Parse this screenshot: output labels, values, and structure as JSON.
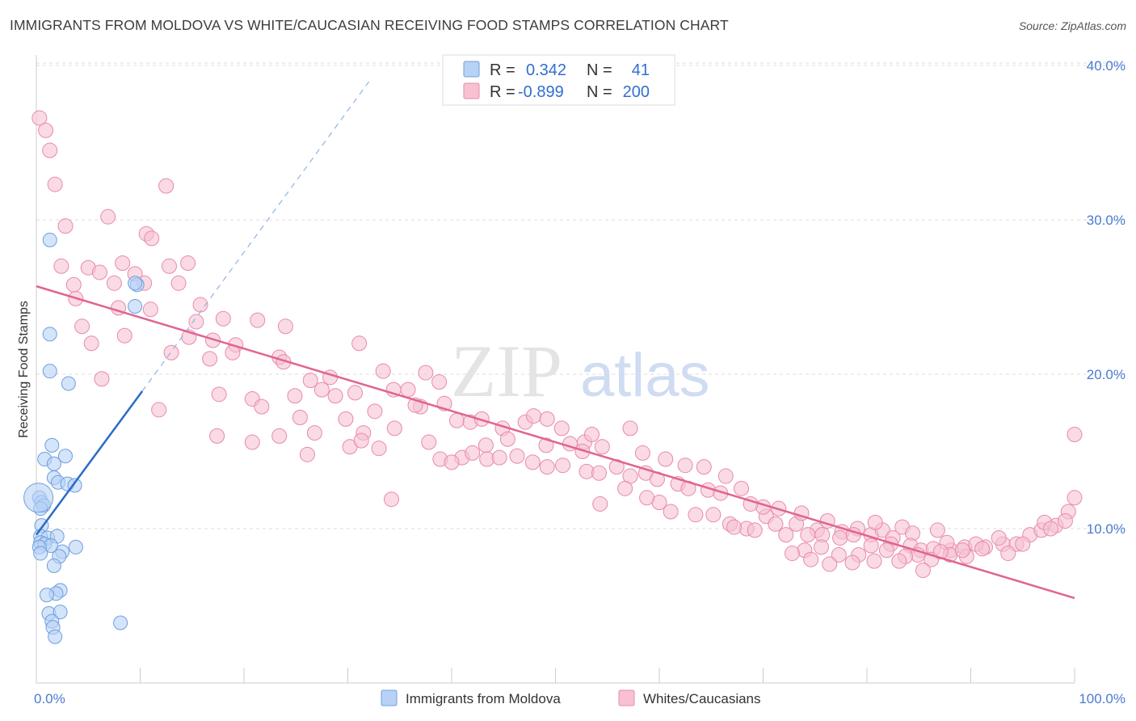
{
  "title": "IMMIGRANTS FROM MOLDOVA VS WHITE/CAUCASIAN RECEIVING FOOD STAMPS CORRELATION CHART",
  "source": "Source: ZipAtlas.com",
  "watermark": {
    "zip": "ZIP",
    "atlas": "atlas"
  },
  "colors": {
    "blue_fill": "#b7d2f5",
    "blue_stroke": "#6d9fe0",
    "blue_line": "#2a6cc9",
    "pink_fill": "#f7c1d2",
    "pink_stroke": "#e88aab",
    "pink_line": "#e06493",
    "axis_label": "#4a7bd0",
    "grid": "#dddddd"
  },
  "legend_top": {
    "rows": [
      {
        "r_label": "R =",
        "r_value": "0.342",
        "n_label": "N =",
        "n_value": "41"
      },
      {
        "r_label": "R =",
        "r_value": "-0.899",
        "n_label": "N =",
        "n_value": "200"
      }
    ]
  },
  "legend_bottom": {
    "series1": "Immigrants from Moldova",
    "series2": "Whites/Caucasians"
  },
  "chart_data": {
    "type": "scatter",
    "title": "IMMIGRANTS FROM MOLDOVA VS WHITE/CAUCASIAN RECEIVING FOOD STAMPS CORRELATION CHART",
    "xlabel": "",
    "ylabel": "Receiving Food Stamps",
    "xlim": [
      0,
      100
    ],
    "ylim": [
      0,
      42
    ],
    "x_tick_labels": [
      "0.0%",
      "100.0%"
    ],
    "y_ticks": [
      10,
      20,
      30,
      40
    ],
    "y_tick_labels": [
      "10.0%",
      "20.0%",
      "30.0%",
      "40.0%"
    ],
    "grid": true,
    "legend": "bottom-center",
    "series": [
      {
        "name": "Immigrants from Moldova",
        "R": 0.342,
        "N": 41,
        "trend": {
          "x": [
            0,
            10.2
          ],
          "y": [
            9.6,
            18.9
          ]
        },
        "trend_extended": {
          "x": [
            10.2,
            32.3
          ],
          "y": [
            18.9,
            39.2
          ]
        },
        "points": [
          [
            1.3,
            28.7
          ],
          [
            1.3,
            22.6
          ],
          [
            1.3,
            20.2
          ],
          [
            3.1,
            19.4
          ],
          [
            1.5,
            15.4
          ],
          [
            2.8,
            14.7
          ],
          [
            0.8,
            14.5
          ],
          [
            1.7,
            14.2
          ],
          [
            1.7,
            13.3
          ],
          [
            2.1,
            13.0
          ],
          [
            3.0,
            12.9
          ],
          [
            3.7,
            12.8
          ],
          [
            0.3,
            12.0
          ],
          [
            0.5,
            11.7
          ],
          [
            0.7,
            11.5
          ],
          [
            0.4,
            11.3
          ],
          [
            0.5,
            10.2
          ],
          [
            0.4,
            9.5
          ],
          [
            1.1,
            9.4
          ],
          [
            2.0,
            9.5
          ],
          [
            0.4,
            9.1
          ],
          [
            0.8,
            9.0
          ],
          [
            1.4,
            8.9
          ],
          [
            0.3,
            8.8
          ],
          [
            3.8,
            8.8
          ],
          [
            2.5,
            8.5
          ],
          [
            0.4,
            8.4
          ],
          [
            2.2,
            8.2
          ],
          [
            1.7,
            7.6
          ],
          [
            2.3,
            6.0
          ],
          [
            1.9,
            5.8
          ],
          [
            1.0,
            5.7
          ],
          [
            1.2,
            4.5
          ],
          [
            2.3,
            4.6
          ],
          [
            1.5,
            4.0
          ],
          [
            1.6,
            3.6
          ],
          [
            1.8,
            3.0
          ],
          [
            8.1,
            3.9
          ],
          [
            9.7,
            25.8
          ],
          [
            9.5,
            25.9
          ],
          [
            9.5,
            24.4
          ]
        ]
      },
      {
        "name": "Whites/Caucasians",
        "R": -0.899,
        "N": 200,
        "trend": {
          "x": [
            0,
            100
          ],
          "y": [
            25.7,
            5.5
          ]
        },
        "points": [
          [
            0.3,
            36.6
          ],
          [
            0.9,
            35.8
          ],
          [
            1.3,
            34.5
          ],
          [
            1.8,
            32.3
          ],
          [
            12.5,
            32.2
          ],
          [
            6.9,
            30.2
          ],
          [
            2.8,
            29.6
          ],
          [
            10.6,
            29.1
          ],
          [
            11.1,
            28.8
          ],
          [
            2.4,
            27.0
          ],
          [
            5.0,
            26.9
          ],
          [
            8.3,
            27.2
          ],
          [
            12.8,
            27.0
          ],
          [
            14.6,
            27.2
          ],
          [
            6.1,
            26.6
          ],
          [
            9.5,
            26.5
          ],
          [
            3.6,
            25.8
          ],
          [
            7.5,
            25.9
          ],
          [
            10.4,
            25.9
          ],
          [
            13.7,
            25.9
          ],
          [
            3.8,
            24.9
          ],
          [
            7.9,
            24.3
          ],
          [
            11.0,
            24.2
          ],
          [
            15.8,
            24.5
          ],
          [
            4.4,
            23.1
          ],
          [
            15.4,
            23.4
          ],
          [
            18.0,
            23.6
          ],
          [
            21.3,
            23.5
          ],
          [
            24.0,
            23.1
          ],
          [
            8.5,
            22.5
          ],
          [
            5.3,
            22.0
          ],
          [
            14.7,
            22.4
          ],
          [
            17.0,
            22.2
          ],
          [
            19.2,
            21.9
          ],
          [
            31.1,
            22.0
          ],
          [
            13.0,
            21.4
          ],
          [
            16.7,
            21.0
          ],
          [
            18.9,
            21.4
          ],
          [
            23.4,
            21.1
          ],
          [
            6.3,
            19.7
          ],
          [
            23.8,
            20.8
          ],
          [
            26.4,
            19.6
          ],
          [
            28.3,
            19.8
          ],
          [
            33.4,
            20.2
          ],
          [
            34.4,
            19.0
          ],
          [
            37.5,
            20.1
          ],
          [
            38.8,
            19.5
          ],
          [
            17.6,
            18.7
          ],
          [
            20.8,
            18.4
          ],
          [
            24.9,
            18.6
          ],
          [
            27.5,
            19.0
          ],
          [
            28.8,
            18.6
          ],
          [
            30.7,
            18.8
          ],
          [
            35.8,
            19.0
          ],
          [
            37.0,
            17.9
          ],
          [
            39.3,
            18.1
          ],
          [
            11.8,
            17.7
          ],
          [
            21.7,
            17.9
          ],
          [
            25.4,
            17.2
          ],
          [
            29.8,
            17.1
          ],
          [
            32.6,
            17.6
          ],
          [
            36.5,
            18.0
          ],
          [
            40.5,
            17.0
          ],
          [
            41.8,
            16.9
          ],
          [
            42.9,
            17.1
          ],
          [
            44.9,
            16.5
          ],
          [
            47.1,
            16.9
          ],
          [
            47.9,
            17.3
          ],
          [
            49.2,
            17.1
          ],
          [
            50.6,
            16.5
          ],
          [
            52.8,
            15.6
          ],
          [
            53.5,
            16.1
          ],
          [
            57.2,
            16.5
          ],
          [
            17.4,
            16.0
          ],
          [
            20.8,
            15.6
          ],
          [
            23.4,
            16.0
          ],
          [
            26.8,
            16.2
          ],
          [
            31.5,
            16.2
          ],
          [
            34.5,
            16.5
          ],
          [
            37.8,
            15.6
          ],
          [
            43.3,
            15.4
          ],
          [
            45.4,
            15.8
          ],
          [
            49.1,
            15.4
          ],
          [
            51.4,
            15.5
          ],
          [
            52.6,
            15.0
          ],
          [
            54.5,
            15.3
          ],
          [
            58.4,
            14.9
          ],
          [
            60.6,
            14.5
          ],
          [
            62.5,
            14.1
          ],
          [
            64.3,
            14.0
          ],
          [
            41.0,
            14.6
          ],
          [
            42.0,
            14.9
          ],
          [
            43.4,
            14.5
          ],
          [
            44.6,
            14.6
          ],
          [
            46.3,
            14.7
          ],
          [
            47.8,
            14.3
          ],
          [
            49.2,
            14.0
          ],
          [
            50.7,
            14.1
          ],
          [
            53.0,
            13.7
          ],
          [
            54.2,
            13.6
          ],
          [
            55.9,
            14.0
          ],
          [
            57.2,
            13.4
          ],
          [
            58.7,
            13.6
          ],
          [
            59.8,
            13.2
          ],
          [
            61.8,
            12.9
          ],
          [
            62.8,
            12.6
          ],
          [
            64.7,
            12.5
          ],
          [
            65.9,
            12.3
          ],
          [
            67.9,
            12.6
          ],
          [
            33.0,
            15.2
          ],
          [
            30.2,
            15.3
          ],
          [
            26.1,
            14.8
          ],
          [
            31.3,
            15.7
          ],
          [
            38.9,
            14.5
          ],
          [
            40.0,
            14.3
          ],
          [
            34.2,
            11.9
          ],
          [
            54.3,
            11.6
          ],
          [
            60.0,
            11.7
          ],
          [
            61.1,
            11.1
          ],
          [
            63.5,
            10.9
          ],
          [
            65.2,
            10.9
          ],
          [
            66.8,
            10.3
          ],
          [
            68.4,
            10.0
          ],
          [
            70.3,
            10.8
          ],
          [
            71.2,
            10.3
          ],
          [
            71.5,
            11.3
          ],
          [
            73.2,
            10.3
          ],
          [
            73.7,
            11.0
          ],
          [
            75.2,
            9.9
          ],
          [
            76.2,
            10.5
          ],
          [
            77.6,
            9.8
          ],
          [
            79.1,
            10.0
          ],
          [
            80.4,
            9.6
          ],
          [
            81.5,
            9.9
          ],
          [
            82.5,
            9.4
          ],
          [
            83.4,
            10.1
          ],
          [
            84.4,
            9.7
          ],
          [
            86.8,
            9.9
          ],
          [
            69.2,
            9.9
          ],
          [
            67.2,
            10.1
          ],
          [
            72.2,
            9.6
          ],
          [
            74.3,
            9.6
          ],
          [
            75.7,
            9.6
          ],
          [
            77.4,
            9.4
          ],
          [
            78.7,
            9.6
          ],
          [
            80.8,
            10.4
          ],
          [
            82.3,
            9.0
          ],
          [
            84.2,
            8.9
          ],
          [
            85.2,
            8.6
          ],
          [
            86.4,
            8.7
          ],
          [
            88.1,
            8.6
          ],
          [
            89.4,
            8.8
          ],
          [
            91.4,
            8.8
          ],
          [
            93.1,
            9.0
          ],
          [
            94.4,
            9.0
          ],
          [
            95.7,
            9.6
          ],
          [
            96.8,
            9.9
          ],
          [
            98.2,
            10.2
          ],
          [
            99.4,
            11.1
          ],
          [
            100.0,
            12.0
          ],
          [
            100.0,
            16.1
          ],
          [
            97.1,
            10.4
          ],
          [
            99.1,
            10.5
          ],
          [
            87.7,
            9.1
          ],
          [
            90.5,
            9.0
          ],
          [
            92.7,
            9.4
          ],
          [
            89.6,
            8.2
          ],
          [
            88.0,
            8.3
          ],
          [
            86.2,
            8.0
          ],
          [
            84.9,
            8.3
          ],
          [
            83.7,
            8.2
          ],
          [
            81.9,
            8.6
          ],
          [
            80.4,
            8.9
          ],
          [
            79.2,
            8.3
          ],
          [
            77.3,
            8.3
          ],
          [
            75.6,
            8.8
          ],
          [
            74.0,
            8.6
          ],
          [
            72.8,
            8.4
          ],
          [
            85.4,
            7.3
          ],
          [
            83.1,
            7.9
          ],
          [
            80.7,
            7.9
          ],
          [
            78.6,
            7.8
          ],
          [
            76.4,
            7.7
          ],
          [
            74.6,
            8.0
          ],
          [
            93.6,
            8.4
          ],
          [
            91.1,
            8.7
          ],
          [
            89.2,
            8.6
          ],
          [
            87.1,
            8.5
          ],
          [
            95.0,
            9.0
          ],
          [
            97.7,
            10.0
          ],
          [
            66.4,
            13.4
          ],
          [
            70.0,
            11.4
          ],
          [
            68.8,
            11.6
          ],
          [
            58.8,
            12.0
          ],
          [
            56.7,
            12.6
          ]
        ]
      }
    ]
  }
}
